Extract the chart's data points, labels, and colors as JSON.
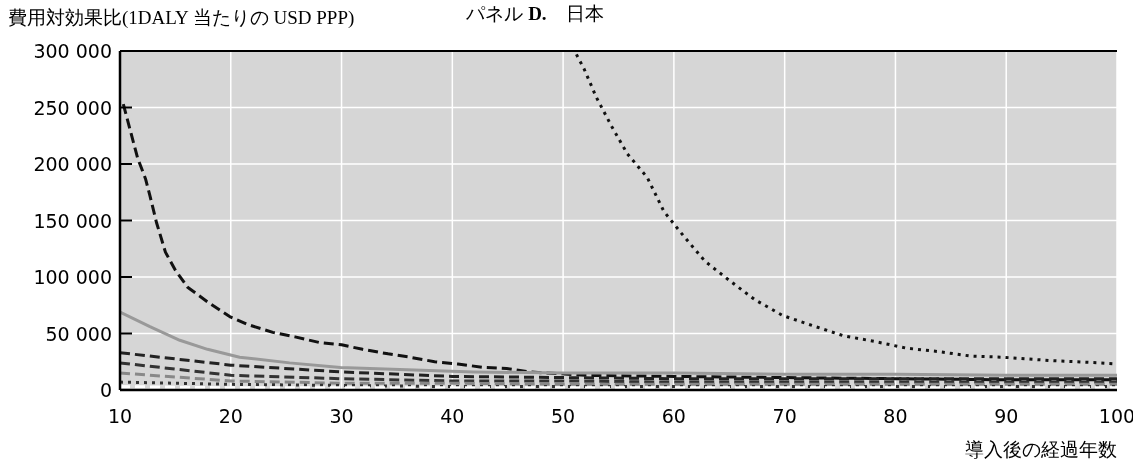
{
  "chart_data": {
    "type": "line",
    "title": "パネル **D.**　日本",
    "ylabel": "費用対効果比(1DALY 当たりの USD PPP)",
    "xlabel": "導入後の経過年数",
    "xlim": [
      10,
      100
    ],
    "ylim": [
      0,
      300000
    ],
    "xticks": [
      10,
      20,
      30,
      40,
      50,
      60,
      70,
      80,
      90,
      100
    ],
    "yticks": [
      {
        "value": 0,
        "label": "0"
      },
      {
        "value": 50000,
        "label": "50 000"
      },
      {
        "value": 100000,
        "label": "100 000"
      },
      {
        "value": 150000,
        "label": "150 000"
      },
      {
        "value": 200000,
        "label": "200 000"
      },
      {
        "value": 250000,
        "label": "250 000"
      },
      {
        "value": 300000,
        "label": "300 000"
      }
    ],
    "grid": true,
    "marker": "none",
    "series": [
      {
        "color": "#111111",
        "line_style": "dotted",
        "x": [
          51.2,
          51.9,
          53,
          54.4,
          55.8,
          57.6,
          59.1,
          60.9,
          62.8,
          65,
          67.3,
          69.8,
          72.5,
          75.3,
          78.1,
          81,
          83.9,
          86.8,
          89.7,
          94.1,
          98.4,
          100
        ],
        "values": [
          297000,
          284000,
          259000,
          233000,
          209000,
          188000,
          158000,
          136000,
          114000,
          97000,
          80000,
          66000,
          57000,
          48000,
          43000,
          37000,
          34000,
          30000,
          29000,
          26000,
          24000,
          23000
        ]
      },
      {
        "color": "#111111",
        "line_style": "dashed",
        "x": [
          10.3,
          11,
          11.6,
          12.3,
          12.7,
          13.3,
          14.1,
          15,
          16.1,
          17.9,
          19.9,
          21.5,
          23.8,
          25.8,
          28,
          30,
          31.9,
          34.2,
          36.2,
          38.4,
          40.5,
          42.8,
          44.9,
          47,
          52,
          60,
          70,
          80,
          90,
          100
        ],
        "values": [
          253000,
          227000,
          205000,
          187000,
          172000,
          148000,
          122000,
          106000,
          91000,
          78000,
          65000,
          58000,
          51000,
          47000,
          42000,
          40000,
          36000,
          32000,
          29000,
          25000,
          23000,
          20000,
          19000,
          16000,
          13000,
          12000,
          11000,
          10000,
          9000,
          9000
        ]
      },
      {
        "color": "#999999",
        "line_style": "solid",
        "x": [
          10,
          12.7,
          15.4,
          17.9,
          20.8,
          25.3,
          29.9,
          35.9,
          41.9,
          50,
          60,
          70,
          80,
          90,
          100
        ],
        "values": [
          69000,
          56000,
          44000,
          36000,
          29000,
          24000,
          20000,
          18000,
          16000,
          15000,
          15000,
          14000,
          14000,
          13000,
          13000
        ]
      },
      {
        "color": "#222222",
        "line_style": "dashed",
        "x": [
          10,
          20,
          30,
          40,
          50,
          60,
          70,
          80,
          90,
          100
        ],
        "values": [
          33000,
          22000,
          16000,
          12000,
          11000,
          10000,
          10000,
          10000,
          10000,
          10000
        ]
      },
      {
        "color": "#333333",
        "line_style": "dashed",
        "x": [
          10,
          20,
          30,
          40,
          50,
          60,
          70,
          80,
          90,
          100
        ],
        "values": [
          24000,
          13000,
          10000,
          8000,
          8000,
          7000,
          7000,
          7000,
          7000,
          7000
        ]
      },
      {
        "color": "#888888",
        "line_style": "dashed",
        "x": [
          10,
          20,
          30,
          40,
          50,
          60,
          70,
          80,
          90,
          100
        ],
        "values": [
          15000,
          8000,
          6000,
          6000,
          5000,
          5000,
          5000,
          5000,
          5000,
          5000
        ]
      },
      {
        "color": "#333333",
        "line_style": "dotted",
        "x": [
          10,
          20,
          30,
          40,
          50,
          60,
          70,
          80,
          90,
          100
        ],
        "values": [
          7000,
          5000,
          4000,
          3000,
          3000,
          3000,
          3000,
          3000,
          3000,
          3000
        ]
      },
      {
        "color": "#ffffff",
        "line_style": "dashed",
        "x": [
          10,
          20,
          30,
          40,
          50,
          60,
          70,
          80,
          90,
          100
        ],
        "values": [
          3000,
          2000,
          2000,
          2000,
          2000,
          2000,
          2000,
          2000,
          2000,
          2000
        ]
      }
    ]
  }
}
